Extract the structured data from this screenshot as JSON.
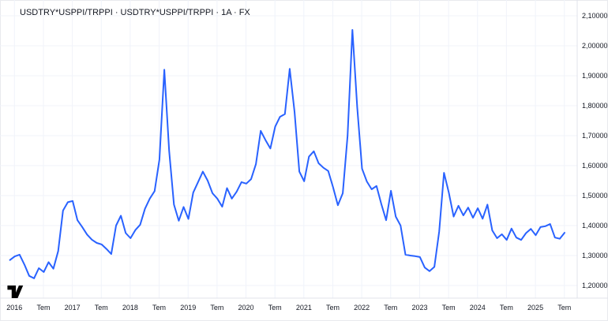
{
  "chart": {
    "legend": "USDTRY*USPPI/TRPPI · USDTRY*USPPI/TRPPI · 1A · FX",
    "symbol": "USDTRY*USPPI/TRPPI",
    "interval": "1A",
    "market": "FX"
  },
  "colors": {
    "line": "#2962FF",
    "grid": "#F0F3FA",
    "axis_line": "#E0E3EB",
    "text": "#131722",
    "logo": "#000000",
    "background": "#FFFFFF"
  },
  "branding": {
    "logo": "tradingview-logo"
  },
  "chart_data": {
    "type": "line",
    "title": "USDTRY*USPPI/TRPPI · USDTRY*USPPI/TRPPI · 1A · FX",
    "line_color": "#2962FF",
    "grid": true,
    "ylim": [
      1.2,
      2.1
    ],
    "y_ticks": [
      {
        "value": 2.1,
        "label": "2,10000"
      },
      {
        "value": 2.0,
        "label": "2,00000"
      },
      {
        "value": 1.9,
        "label": "1,90000"
      },
      {
        "value": 1.8,
        "label": "1,80000"
      },
      {
        "value": 1.7,
        "label": "1,70000"
      },
      {
        "value": 1.6,
        "label": "1,60000"
      },
      {
        "value": 1.5,
        "label": "1,50000"
      },
      {
        "value": 1.4,
        "label": "1,40000"
      },
      {
        "value": 1.3,
        "label": "1,30000"
      },
      {
        "value": 1.2,
        "label": "1,20000"
      }
    ],
    "x_ticks": [
      "2016",
      "Tem",
      "2017",
      "Tem",
      "2018",
      "Tem",
      "2019",
      "Tem",
      "2020",
      "Tem",
      "2021",
      "Tem",
      "2022",
      "Tem",
      "2023",
      "Tem",
      "2024",
      "Tem",
      "2025",
      "Tem"
    ],
    "x": [
      "2015-12",
      "2016-01",
      "2016-02",
      "2016-03",
      "2016-04",
      "2016-05",
      "2016-06",
      "2016-07",
      "2016-08",
      "2016-09",
      "2016-10",
      "2016-11",
      "2016-12",
      "2017-01",
      "2017-02",
      "2017-03",
      "2017-04",
      "2017-05",
      "2017-06",
      "2017-07",
      "2017-08",
      "2017-09",
      "2017-10",
      "2017-11",
      "2017-12",
      "2018-01",
      "2018-02",
      "2018-03",
      "2018-04",
      "2018-05",
      "2018-06",
      "2018-07",
      "2018-08",
      "2018-09",
      "2018-10",
      "2018-11",
      "2018-12",
      "2019-01",
      "2019-02",
      "2019-03",
      "2019-04",
      "2019-05",
      "2019-06",
      "2019-07",
      "2019-08",
      "2019-09",
      "2019-10",
      "2019-11",
      "2019-12",
      "2020-01",
      "2020-02",
      "2020-03",
      "2020-04",
      "2020-05",
      "2020-06",
      "2020-07",
      "2020-08",
      "2020-09",
      "2020-10",
      "2020-11",
      "2020-12",
      "2021-01",
      "2021-02",
      "2021-03",
      "2021-04",
      "2021-05",
      "2021-06",
      "2021-07",
      "2021-08",
      "2021-09",
      "2021-10",
      "2021-11",
      "2021-12",
      "2022-01",
      "2022-02",
      "2022-03",
      "2022-04",
      "2022-05",
      "2022-06",
      "2022-07",
      "2022-08",
      "2022-09",
      "2022-10",
      "2022-11",
      "2022-12",
      "2023-01",
      "2023-02",
      "2023-03",
      "2023-04",
      "2023-05",
      "2023-06",
      "2023-07",
      "2023-08",
      "2023-09",
      "2023-10",
      "2023-11",
      "2023-12",
      "2024-01",
      "2024-02",
      "2024-03",
      "2024-04",
      "2024-05",
      "2024-06",
      "2024-07",
      "2024-08",
      "2024-09",
      "2024-10",
      "2024-11",
      "2024-12",
      "2025-01",
      "2025-02",
      "2025-03",
      "2025-04",
      "2025-05",
      "2025-06",
      "2025-07"
    ],
    "values": [
      1.285,
      1.297,
      1.303,
      1.27,
      1.232,
      1.224,
      1.258,
      1.245,
      1.278,
      1.256,
      1.315,
      1.45,
      1.478,
      1.482,
      1.418,
      1.395,
      1.37,
      1.353,
      1.342,
      1.337,
      1.322,
      1.305,
      1.4,
      1.433,
      1.375,
      1.358,
      1.385,
      1.403,
      1.456,
      1.49,
      1.515,
      1.62,
      1.92,
      1.65,
      1.47,
      1.416,
      1.462,
      1.422,
      1.51,
      1.545,
      1.58,
      1.55,
      1.508,
      1.49,
      1.463,
      1.525,
      1.49,
      1.513,
      1.545,
      1.54,
      1.555,
      1.605,
      1.716,
      1.685,
      1.657,
      1.73,
      1.763,
      1.772,
      1.923,
      1.78,
      1.58,
      1.548,
      1.63,
      1.648,
      1.608,
      1.593,
      1.582,
      1.528,
      1.468,
      1.508,
      1.7,
      2.053,
      1.795,
      1.59,
      1.547,
      1.521,
      1.532,
      1.472,
      1.418,
      1.516,
      1.43,
      1.4,
      1.303,
      1.3,
      1.298,
      1.295,
      1.26,
      1.248,
      1.262,
      1.38,
      1.576,
      1.51,
      1.43,
      1.466,
      1.434,
      1.46,
      1.426,
      1.458,
      1.423,
      1.47,
      1.384,
      1.358,
      1.371,
      1.352,
      1.39,
      1.36,
      1.352,
      1.375,
      1.389,
      1.368,
      1.395,
      1.398,
      1.405,
      1.36,
      1.356,
      1.376
    ]
  }
}
